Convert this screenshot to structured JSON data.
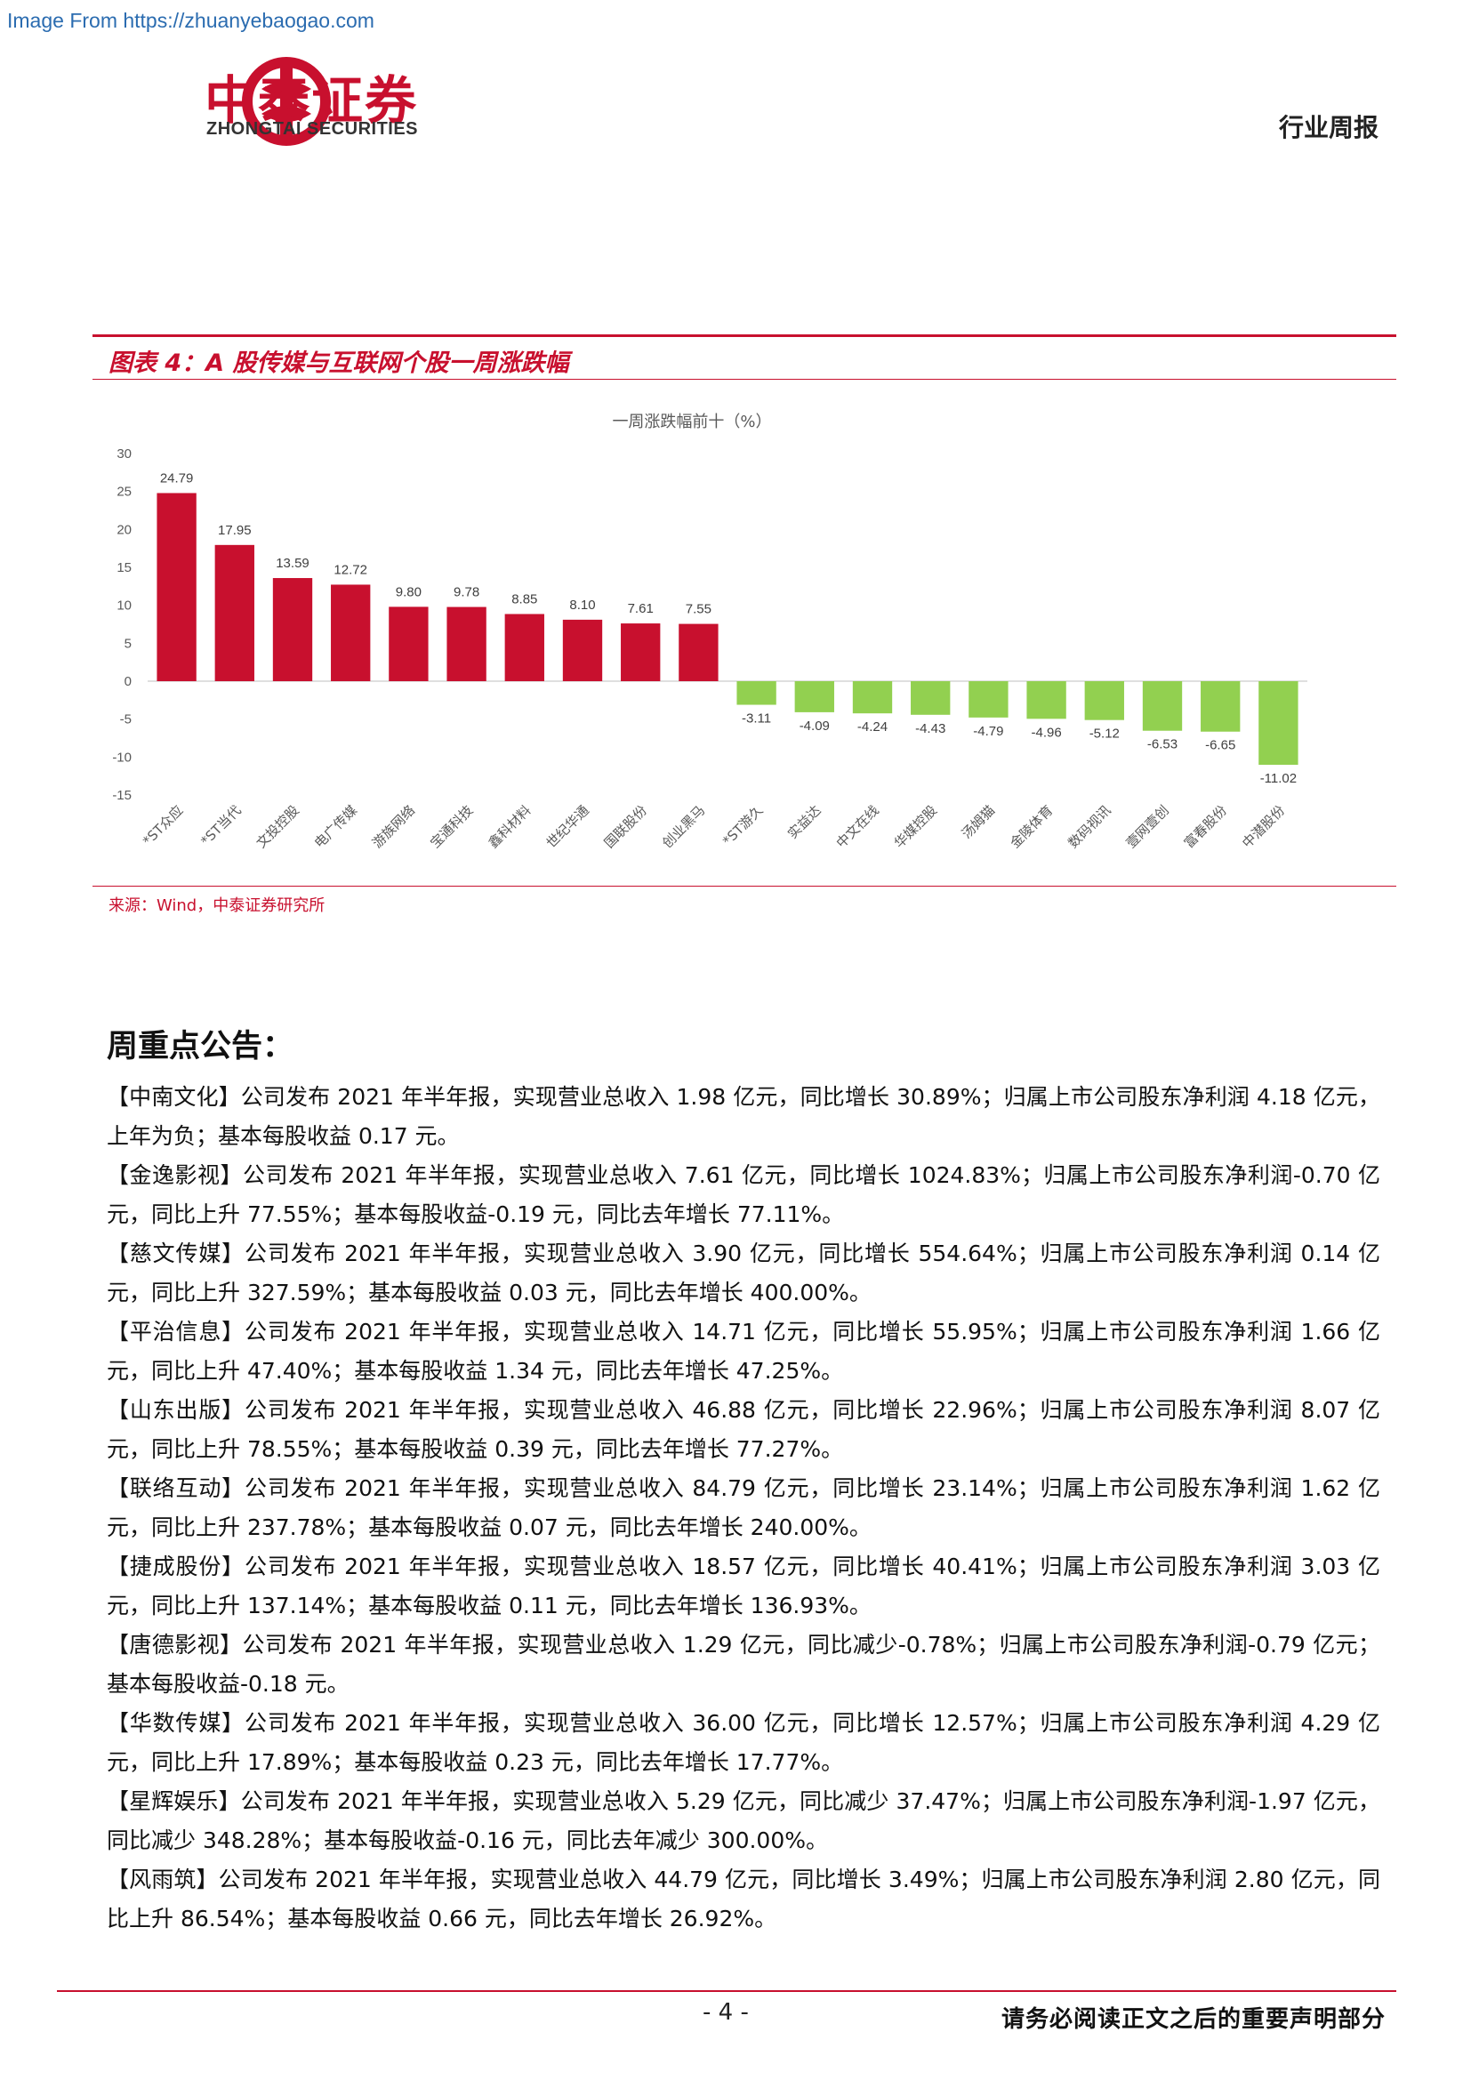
{
  "header": {
    "source_url": "Image From https://zhuanyebaogao.com",
    "logo_cn": "中泰证券",
    "logo_en": "ZHONGTAI SECURITIES",
    "report_type": "行业周报",
    "brand_color": "#c8102e",
    "logo_icon": "zhongtai-seal-icon"
  },
  "figure": {
    "title": "图表 4：A 股传媒与互联网个股一周涨跌幅",
    "source": "来源：Wind，中泰证券研究所"
  },
  "chart_data": {
    "type": "bar",
    "title": "一周涨跌幅前十（%）",
    "xlabel": "",
    "ylabel": "",
    "ylim": [
      -15,
      30
    ],
    "yticks": [
      30,
      25,
      20,
      15,
      10,
      5,
      0,
      -5,
      -10,
      -15
    ],
    "grid": false,
    "legend": "none",
    "positive_color": "#c8102e",
    "negative_color": "#92d050",
    "categories": [
      "*ST众应",
      "*ST当代",
      "文投控股",
      "电广传媒",
      "游族网络",
      "宝通科技",
      "鑫科材料",
      "世纪华通",
      "国联股份",
      "创业黑马",
      "*ST游久",
      "实益达",
      "中文在线",
      "华媒控股",
      "汤姆猫",
      "金陵体育",
      "数码视讯",
      "壹网壹创",
      "富春股份",
      "中潜股份"
    ],
    "values": [
      24.79,
      17.95,
      13.59,
      12.72,
      9.8,
      9.78,
      8.85,
      8.1,
      7.61,
      7.55,
      -3.11,
      -4.09,
      -4.24,
      -4.43,
      -4.79,
      -4.96,
      -5.12,
      -6.53,
      -6.65,
      -11.02
    ],
    "labels": [
      "24.79",
      "17.95",
      "13.59",
      "12.72",
      "9.80",
      "9.78",
      "8.85",
      "8.10",
      "7.61",
      "7.55",
      "-3.11",
      "-4.09",
      "-4.24",
      "-4.43",
      "-4.79",
      "-4.96",
      "-5.12",
      "-6.53",
      "-6.65",
      "-11.02"
    ]
  },
  "section": {
    "heading": "周重点公告："
  },
  "announcements": [
    {
      "company": "【中南文化】",
      "text": "公司发布 2021 年半年报，实现营业总收入 1.98 亿元，同比增长 30.89%；归属上市公司股东净利润 4.18 亿元，上年为负；基本每股收益 0.17 元。"
    },
    {
      "company": "【金逸影视】",
      "text": "公司发布 2021 年半年报，实现营业总收入 7.61 亿元，同比增长 1024.83%；归属上市公司股东净利润-0.70 亿元，同比上升 77.55%；基本每股收益-0.19 元，同比去年增长 77.11%。"
    },
    {
      "company": "【慈文传媒】",
      "text": "公司发布 2021 年半年报，实现营业总收入 3.90 亿元，同比增长 554.64%；归属上市公司股东净利润 0.14 亿元，同比上升 327.59%；基本每股收益 0.03 元，同比去年增长 400.00%。"
    },
    {
      "company": "【平治信息】",
      "text": "公司发布 2021 年半年报，实现营业总收入 14.71 亿元，同比增长 55.95%；归属上市公司股东净利润 1.66 亿元，同比上升 47.40%；基本每股收益 1.34 元，同比去年增长 47.25%。"
    },
    {
      "company": "【山东出版】",
      "text": "公司发布 2021 年半年报，实现营业总收入 46.88 亿元，同比增长 22.96%；归属上市公司股东净利润 8.07 亿元，同比上升 78.55%；基本每股收益 0.39 元，同比去年增长 77.27%。"
    },
    {
      "company": "【联络互动】",
      "text": "公司发布 2021 年半年报，实现营业总收入 84.79 亿元，同比增长 23.14%；归属上市公司股东净利润 1.62 亿元，同比上升 237.78%；基本每股收益 0.07 元，同比去年增长 240.00%。"
    },
    {
      "company": "【捷成股份】",
      "text": "公司发布 2021 年半年报，实现营业总收入 18.57 亿元，同比增长 40.41%；归属上市公司股东净利润 3.03 亿元，同比上升 137.14%；基本每股收益 0.11 元，同比去年增长 136.93%。"
    },
    {
      "company": "【唐德影视】",
      "text": "公司发布 2021 年半年报，实现营业总收入 1.29 亿元，同比减少-0.78%；归属上市公司股东净利润-0.79 亿元；基本每股收益-0.18 元。"
    },
    {
      "company": "【华数传媒】",
      "text": "公司发布 2021 年半年报，实现营业总收入 36.00 亿元，同比增长 12.57%；归属上市公司股东净利润 4.29 亿元，同比上升 17.89%；基本每股收益 0.23 元，同比去年增长 17.77%。"
    },
    {
      "company": "【星辉娱乐】",
      "text": "公司发布 2021 年半年报，实现营业总收入 5.29 亿元，同比减少 37.47%；归属上市公司股东净利润-1.97 亿元，同比减少 348.28%；基本每股收益-0.16 元，同比去年减少 300.00%。"
    },
    {
      "company": "【风雨筑】",
      "text": "公司发布 2021 年半年报，实现营业总收入 44.79 亿元，同比增长 3.49%；归属上市公司股东净利润 2.80 亿元，同比上升 86.54%；基本每股收益 0.66 元，同比去年增长 26.92%。"
    }
  ],
  "footer": {
    "page_number": "- 4 -",
    "disclaimer": "请务必阅读正文之后的重要声明部分"
  }
}
